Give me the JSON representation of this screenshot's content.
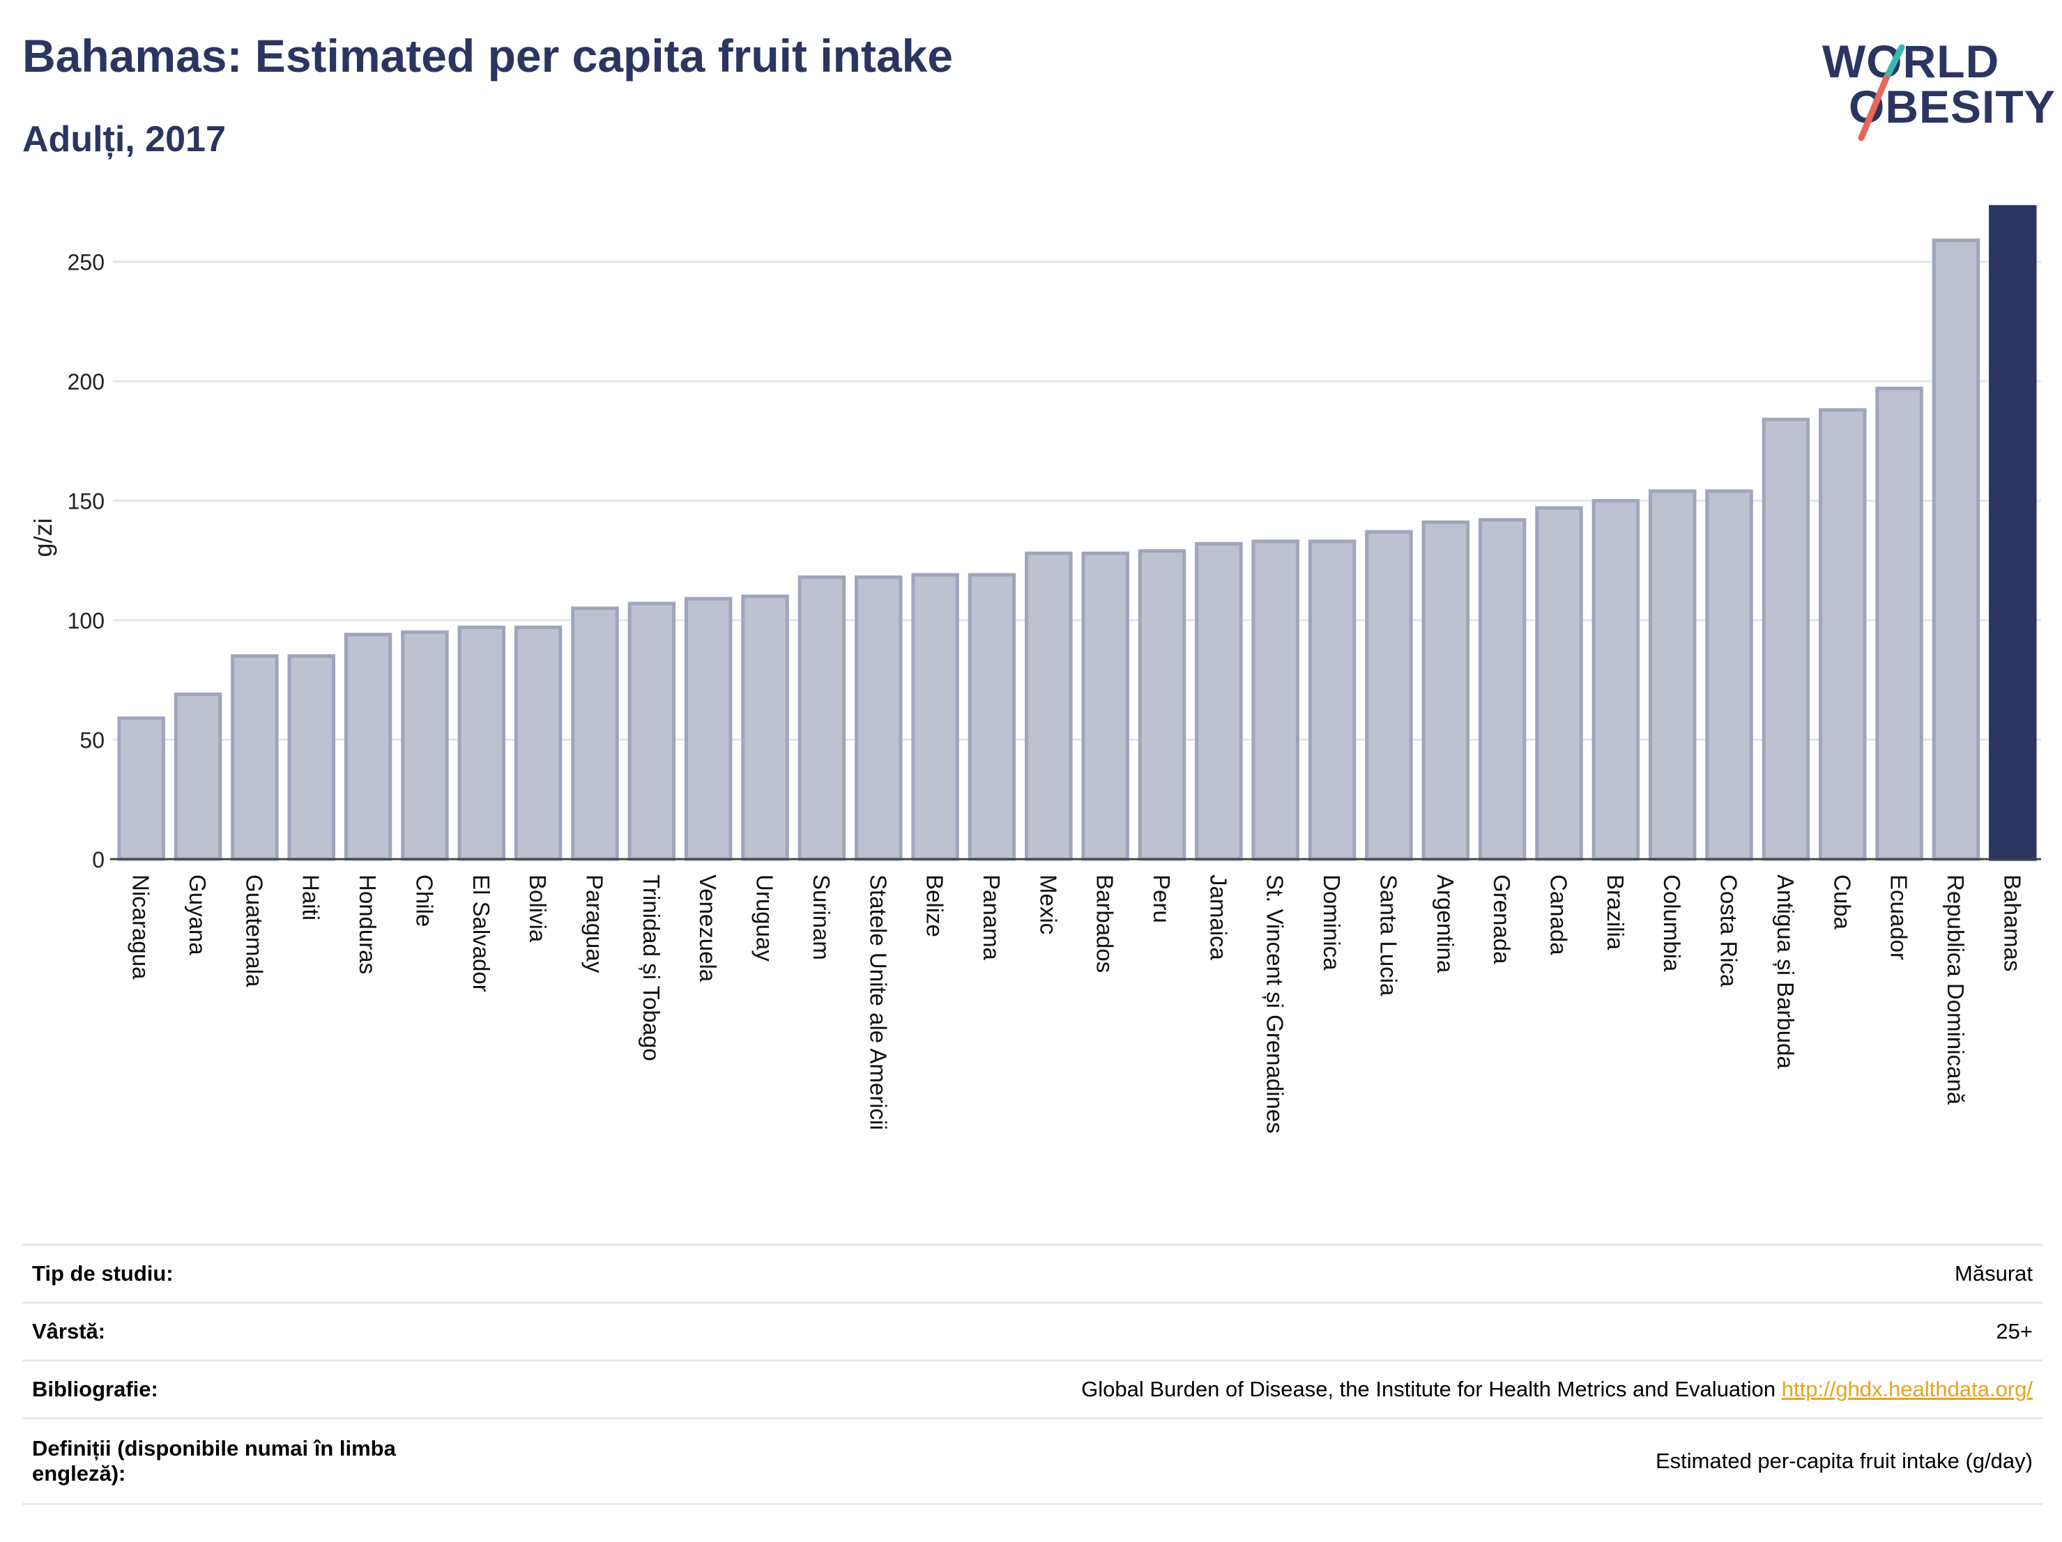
{
  "header": {
    "title": "Bahamas: Estimated per capita fruit intake",
    "subtitle": "Adulți, 2017"
  },
  "logo": {
    "line1": "WORLD",
    "line2": "OBESITY",
    "accent_teal": "#3ab9b0",
    "accent_red": "#e8675b"
  },
  "chart_data": {
    "type": "bar",
    "ylabel": "g/zi",
    "xlabel": "",
    "ylim": [
      0,
      275
    ],
    "yticks": [
      0,
      50,
      100,
      150,
      200,
      250
    ],
    "grid": true,
    "highlight": "Bahamas",
    "colors": {
      "bar": "#bec2d0",
      "bar_edge": "#a0a5bc",
      "highlight": "#2b3560",
      "grid": "#e3e5ec"
    },
    "categories": [
      "Nicaragua",
      "Guyana",
      "Guatemala",
      "Haiti",
      "Honduras",
      "Chile",
      "El Salvador",
      "Bolivia",
      "Paraguay",
      "Trinidad și Tobago",
      "Venezuela",
      "Uruguay",
      "Surinam",
      "Statele Unite ale Americii",
      "Belize",
      "Panama",
      "Mexic",
      "Barbados",
      "Peru",
      "Jamaica",
      "St. Vincent și Grenadines",
      "Dominica",
      "Santa Lucia",
      "Argentina",
      "Grenada",
      "Canada",
      "Brazilia",
      "Columbia",
      "Costa Rica",
      "Antigua și Barbuda",
      "Cuba",
      "Ecuador",
      "Republica Dominicană",
      "Bahamas"
    ],
    "values": [
      59,
      69,
      85,
      85,
      94,
      95,
      97,
      97,
      105,
      107,
      109,
      110,
      118,
      118,
      119,
      119,
      128,
      128,
      129,
      132,
      133,
      133,
      137,
      141,
      142,
      147,
      150,
      154,
      154,
      184,
      188,
      197,
      259,
      273
    ]
  },
  "info": [
    {
      "key": "Tip de studiu:",
      "value": "Măsurat"
    },
    {
      "key": "Vârstă:",
      "value": "25+"
    },
    {
      "key": "Bibliografie:",
      "value": "Global Burden of Disease, the Institute for Health Metrics and Evaluation",
      "link": "http://ghdx.healthdata.org/"
    },
    {
      "key": "Definiții (disponibile numai în limba engleză):",
      "value": "Estimated per-capita fruit intake (g/day)"
    }
  ]
}
